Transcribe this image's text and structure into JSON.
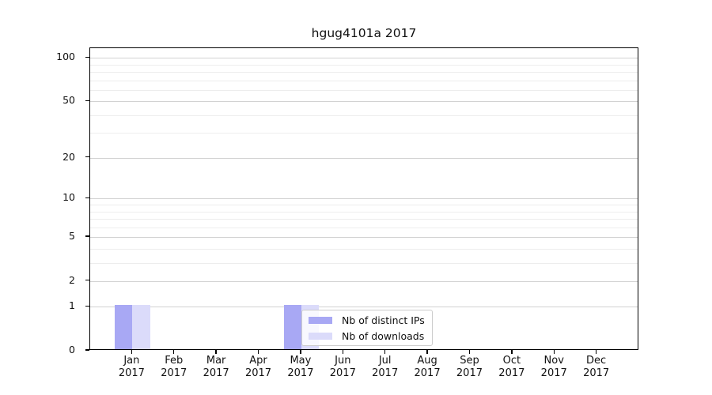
{
  "chart_data": {
    "type": "bar",
    "title": "hgug4101a 2017",
    "x_categories": [
      {
        "month": "Jan",
        "year": "2017"
      },
      {
        "month": "Feb",
        "year": "2017"
      },
      {
        "month": "Mar",
        "year": "2017"
      },
      {
        "month": "Apr",
        "year": "2017"
      },
      {
        "month": "May",
        "year": "2017"
      },
      {
        "month": "Jun",
        "year": "2017"
      },
      {
        "month": "Jul",
        "year": "2017"
      },
      {
        "month": "Aug",
        "year": "2017"
      },
      {
        "month": "Sep",
        "year": "2017"
      },
      {
        "month": "Oct",
        "year": "2017"
      },
      {
        "month": "Nov",
        "year": "2017"
      },
      {
        "month": "Dec",
        "year": "2017"
      }
    ],
    "series": [
      {
        "name": "Nb of distinct IPs",
        "color": "#a8a8f4",
        "values": [
          1,
          0,
          0,
          0,
          1,
          0,
          0,
          0,
          0,
          0,
          0,
          0
        ]
      },
      {
        "name": "Nb of downloads",
        "color": "#dbdbfa",
        "values": [
          1,
          0,
          0,
          0,
          1,
          0,
          0,
          0,
          0,
          0,
          0,
          0
        ]
      }
    ],
    "y_scale": "log1p",
    "y_ticks": [
      0,
      1,
      2,
      5,
      10,
      20,
      50,
      100
    ],
    "y_minor_gridlines": [
      3,
      4,
      6,
      7,
      8,
      9,
      30,
      40,
      60,
      70,
      80,
      90
    ],
    "ylim": [
      0,
      117
    ],
    "grid": true,
    "legend_position": "inside-bottom-center"
  }
}
